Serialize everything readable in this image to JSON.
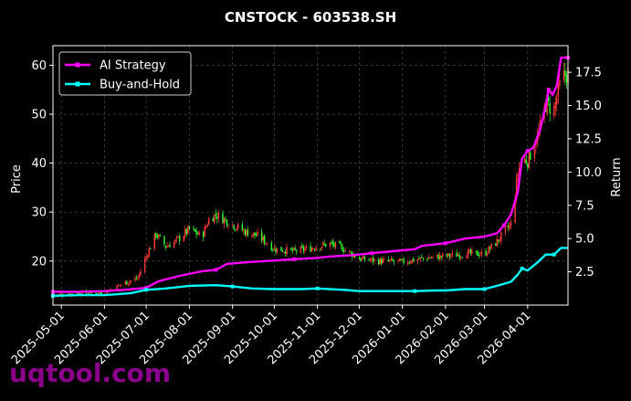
{
  "chart_data": {
    "type": "line",
    "title": "CNSTOCK - 603538.SH",
    "ylabel": "Price",
    "y2label": "Return",
    "x_start": "2025-04-25",
    "x_end": "2026-04-30",
    "ylim": [
      11,
      64
    ],
    "y2lim": [
      0.0,
      19.5
    ],
    "yticks": [
      "20",
      "30",
      "40",
      "50",
      "60"
    ],
    "y2ticks": [
      "2.5",
      "5.0",
      "7.5",
      "10.0",
      "12.5",
      "15.0",
      "17.5"
    ],
    "xticks": [
      "2025-05-01",
      "2025-06-01",
      "2025-07-01",
      "2025-08-01",
      "2025-09-01",
      "2025-10-01",
      "2025-11-01",
      "2025-12-01",
      "2026-01-01",
      "2026-02-01",
      "2026-03-01",
      "2026-04-01"
    ],
    "grid": true,
    "legend_position": "top-left",
    "watermark": "uqtool.com",
    "colors": {
      "background": "#000000",
      "text": "#ffffff",
      "grid": "#555555",
      "candle_up": "#ff3b3b",
      "candle_down": "#33ff33",
      "watermark": "#8b008b"
    },
    "series": [
      {
        "name": "AI Strategy",
        "color": "#ff00ff",
        "axis": "right",
        "points": [
          [
            "2025-04-25",
            1.0
          ],
          [
            "2025-05-15",
            1.0
          ],
          [
            "2025-06-01",
            1.05
          ],
          [
            "2025-06-15",
            1.15
          ],
          [
            "2025-07-01",
            1.3
          ],
          [
            "2025-07-10",
            1.8
          ],
          [
            "2025-07-25",
            2.2
          ],
          [
            "2025-08-10",
            2.55
          ],
          [
            "2025-08-20",
            2.65
          ],
          [
            "2025-08-28",
            3.1
          ],
          [
            "2025-09-15",
            3.25
          ],
          [
            "2025-10-01",
            3.35
          ],
          [
            "2025-10-15",
            3.45
          ],
          [
            "2025-11-01",
            3.55
          ],
          [
            "2025-11-10",
            3.65
          ],
          [
            "2025-11-25",
            3.75
          ],
          [
            "2025-12-10",
            3.9
          ],
          [
            "2025-12-25",
            4.05
          ],
          [
            "2026-01-10",
            4.2
          ],
          [
            "2026-01-15",
            4.45
          ],
          [
            "2026-02-01",
            4.65
          ],
          [
            "2026-02-15",
            5.0
          ],
          [
            "2026-03-01",
            5.15
          ],
          [
            "2026-03-10",
            5.4
          ],
          [
            "2026-03-15",
            6.0
          ],
          [
            "2026-03-20",
            6.8
          ],
          [
            "2026-03-25",
            8.5
          ],
          [
            "2026-03-28",
            11.0
          ],
          [
            "2026-04-01",
            11.6
          ],
          [
            "2026-04-05",
            11.8
          ],
          [
            "2026-04-10",
            13.2
          ],
          [
            "2026-04-14",
            15.0
          ],
          [
            "2026-04-16",
            16.2
          ],
          [
            "2026-04-19",
            15.8
          ],
          [
            "2026-04-22",
            16.5
          ],
          [
            "2026-04-25",
            18.6
          ],
          [
            "2026-04-30",
            18.6
          ]
        ]
      },
      {
        "name": "Buy-and-Hold",
        "color": "#00ffff",
        "axis": "right",
        "points": [
          [
            "2025-04-25",
            0.7
          ],
          [
            "2025-05-15",
            0.75
          ],
          [
            "2025-06-01",
            0.75
          ],
          [
            "2025-06-20",
            0.9
          ],
          [
            "2025-07-01",
            1.15
          ],
          [
            "2025-07-15",
            1.25
          ],
          [
            "2025-08-01",
            1.45
          ],
          [
            "2025-08-20",
            1.5
          ],
          [
            "2025-09-01",
            1.4
          ],
          [
            "2025-09-15",
            1.25
          ],
          [
            "2025-10-01",
            1.2
          ],
          [
            "2025-10-20",
            1.2
          ],
          [
            "2025-11-01",
            1.25
          ],
          [
            "2025-11-20",
            1.15
          ],
          [
            "2025-12-01",
            1.05
          ],
          [
            "2025-12-20",
            1.05
          ],
          [
            "2026-01-10",
            1.05
          ],
          [
            "2026-01-25",
            1.1
          ],
          [
            "2026-02-01",
            1.1
          ],
          [
            "2026-02-15",
            1.2
          ],
          [
            "2026-03-01",
            1.2
          ],
          [
            "2026-03-10",
            1.45
          ],
          [
            "2026-03-20",
            1.75
          ],
          [
            "2026-03-25",
            2.3
          ],
          [
            "2026-03-28",
            2.75
          ],
          [
            "2026-04-01",
            2.6
          ],
          [
            "2026-04-08",
            3.2
          ],
          [
            "2026-04-14",
            3.8
          ],
          [
            "2026-04-20",
            3.8
          ],
          [
            "2026-04-25",
            4.3
          ],
          [
            "2026-04-30",
            4.3
          ]
        ]
      }
    ],
    "price_path": [
      [
        "2025-04-25",
        13.0
      ],
      [
        "2025-05-15",
        13.5
      ],
      [
        "2025-06-01",
        13.5
      ],
      [
        "2025-06-15",
        15.5
      ],
      [
        "2025-06-25",
        16.5
      ],
      [
        "2025-07-01",
        21.0
      ],
      [
        "2025-07-08",
        25.5
      ],
      [
        "2025-07-15",
        23.0
      ],
      [
        "2025-07-22",
        24.0
      ],
      [
        "2025-08-01",
        26.5
      ],
      [
        "2025-08-10",
        25.0
      ],
      [
        "2025-08-15",
        28.5
      ],
      [
        "2025-08-20",
        29.5
      ],
      [
        "2025-09-01",
        27.5
      ],
      [
        "2025-09-10",
        26.0
      ],
      [
        "2025-09-20",
        25.0
      ],
      [
        "2025-10-01",
        22.5
      ],
      [
        "2025-10-15",
        22.0
      ],
      [
        "2025-10-25",
        22.5
      ],
      [
        "2025-11-01",
        23.0
      ],
      [
        "2025-11-10",
        23.5
      ],
      [
        "2025-11-20",
        22.5
      ],
      [
        "2025-12-01",
        20.5
      ],
      [
        "2025-12-15",
        20.0
      ],
      [
        "2026-01-01",
        19.8
      ],
      [
        "2026-01-15",
        20.5
      ],
      [
        "2026-02-01",
        21.0
      ],
      [
        "2026-02-15",
        21.5
      ],
      [
        "2026-03-01",
        21.5
      ],
      [
        "2026-03-10",
        24.0
      ],
      [
        "2026-03-20",
        27.5
      ],
      [
        "2026-03-25",
        38.0
      ],
      [
        "2026-03-28",
        41.0
      ],
      [
        "2026-04-01",
        40.5
      ],
      [
        "2026-04-08",
        45.0
      ],
      [
        "2026-04-14",
        52.0
      ],
      [
        "2026-04-20",
        51.0
      ],
      [
        "2026-04-25",
        57.0
      ],
      [
        "2026-04-30",
        58.5
      ]
    ]
  }
}
